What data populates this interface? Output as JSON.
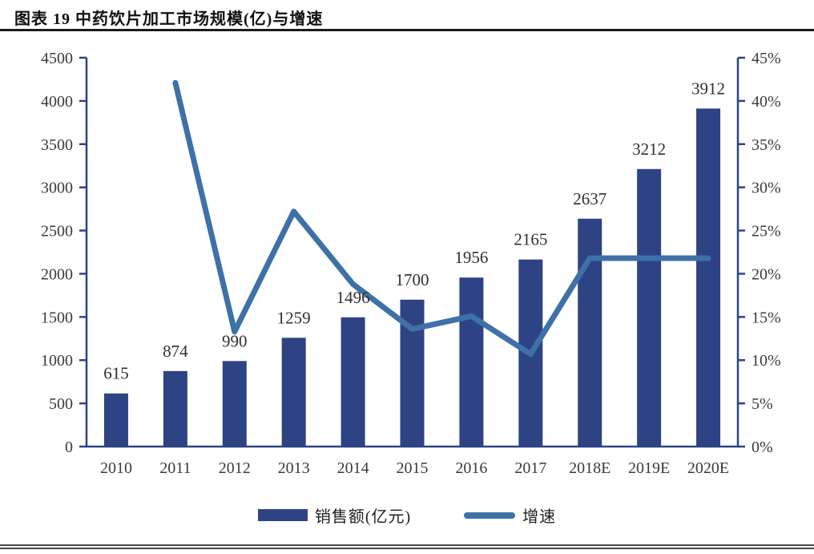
{
  "header": {
    "title": "图表 19 中药饮片加工市场规模(亿)与增速"
  },
  "chart_data": {
    "type": "bar-line-combo",
    "title": "图表 19 中药饮片加工市场规模(亿)与增速",
    "categories": [
      "2010",
      "2011",
      "2012",
      "2013",
      "2014",
      "2015",
      "2016",
      "2017",
      "2018E",
      "2019E",
      "2020E"
    ],
    "series": [
      {
        "name": "销售额(亿元)",
        "kind": "bar",
        "axis": "left",
        "color": "#2e4384",
        "values": [
          615,
          874,
          990,
          1259,
          1496,
          1700,
          1956,
          2165,
          2637,
          3212,
          3912
        ],
        "labels": [
          "615",
          "874",
          "990",
          "1259",
          "1496",
          "1700",
          "1956",
          "2165",
          "2637",
          "3212",
          "3912"
        ]
      },
      {
        "name": "增速",
        "kind": "line",
        "axis": "right",
        "color": "#3d71a8",
        "values": [
          null,
          42.1,
          13.3,
          27.2,
          18.8,
          13.6,
          15.1,
          10.7,
          21.8,
          21.8,
          21.8
        ]
      }
    ],
    "left_axis": {
      "min": 0,
      "max": 4500,
      "step": 500,
      "ticks": [
        "4500",
        "4000",
        "3500",
        "3000",
        "2500",
        "2000",
        "1500",
        "1000",
        "500",
        "0"
      ]
    },
    "right_axis": {
      "min": 0,
      "max": 45,
      "step": 5,
      "ticks": [
        "45%",
        "40%",
        "35%",
        "30%",
        "25%",
        "20%",
        "15%",
        "10%",
        "5%",
        "0%"
      ]
    },
    "grid": false,
    "legend_position": "bottom",
    "axis_color": "#2e4384",
    "text_color": "#3a3a3a"
  }
}
